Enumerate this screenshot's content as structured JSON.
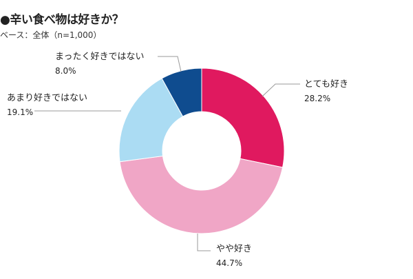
{
  "chart_data": {
    "type": "pie",
    "donut": true,
    "title": "●辛い食べ物は好きか？",
    "subtitle": "ベース：全体（n=1,000）",
    "slices": [
      {
        "label": "とても好き",
        "value": 28.2,
        "value_label": "28.2%",
        "color": "#e0195f"
      },
      {
        "label": "やや好き",
        "value": 44.7,
        "value_label": "44.7%",
        "color": "#f0a6c6"
      },
      {
        "label": "あまり好きではない",
        "value": 19.1,
        "value_label": "19.1%",
        "color": "#abdcf3"
      },
      {
        "label": "まったく好きではない",
        "value": 8.0,
        "value_label": "8.0%",
        "color": "#0f4c8f"
      }
    ]
  }
}
